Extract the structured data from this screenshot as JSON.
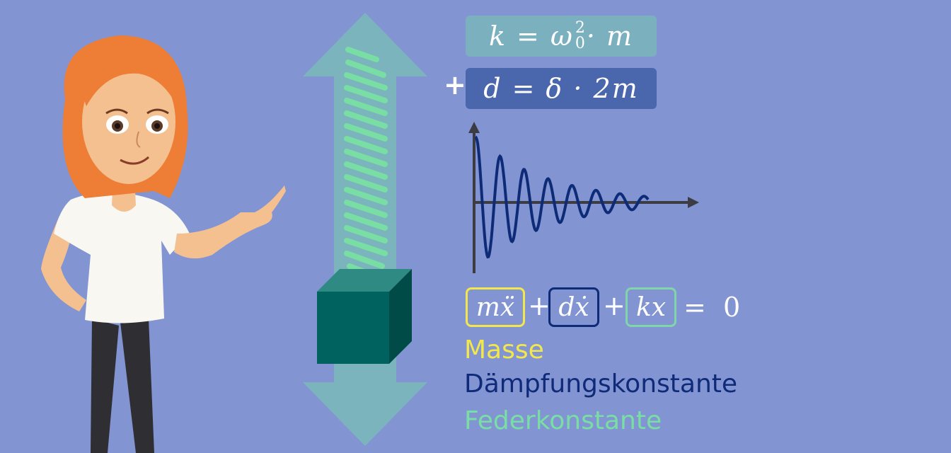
{
  "formulas": {
    "spring_constant": {
      "lhs": "k",
      "op": "=",
      "rhs_base": "ω",
      "rhs_sub": "0",
      "rhs_sup": "2",
      "rhs_rest": " · m"
    },
    "damping_constant": {
      "prefix": "+",
      "lhs": "d",
      "op": "=",
      "rhs": "δ · 2m"
    }
  },
  "equation": {
    "term_mass": "mẍ",
    "plus1": "+",
    "term_damping": "dẋ",
    "plus2": "+",
    "term_spring": "kx",
    "rhs": "=  0"
  },
  "legend": {
    "mass": "Masse",
    "damping": "Dämpfungskonstante",
    "spring": "Federkonstante"
  },
  "colors": {
    "background": "#8295d2",
    "mass": "#f2e84a",
    "damping": "#0f2a78",
    "spring": "#79dea4",
    "block": "#00625e",
    "arrow": "#7cb4bd"
  }
}
